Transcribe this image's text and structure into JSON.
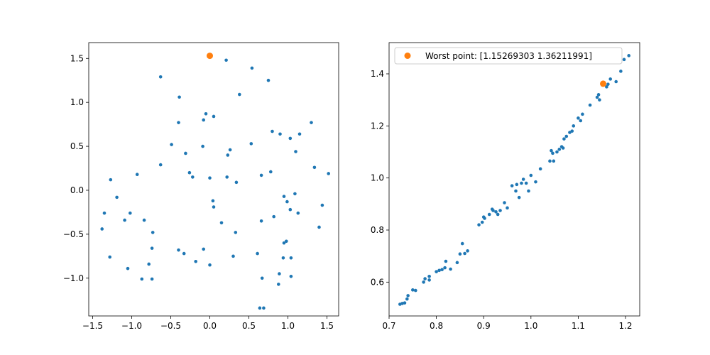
{
  "colors": {
    "points": "#1f77b4",
    "highlight": "#ff7f0e"
  },
  "chart_data": [
    {
      "type": "scatter",
      "title": "",
      "xlabel": "",
      "ylabel": "",
      "xlim": [
        -1.55,
        1.65
      ],
      "ylim": [
        -1.43,
        1.68
      ],
      "xticks": [
        -1.5,
        -1.0,
        -0.5,
        0.0,
        0.5,
        1.0,
        1.5
      ],
      "xtick_labels": [
        "−1.5",
        "−1.0",
        "−0.5",
        "0.0",
        "0.5",
        "1.0",
        "1.5"
      ],
      "yticks": [
        -1.0,
        -0.5,
        0.0,
        0.5,
        1.0,
        1.5
      ],
      "ytick_labels": [
        "−1.0",
        "−0.5",
        "0.0",
        "0.5",
        "1.0",
        "1.5"
      ],
      "grid": false,
      "series": [
        {
          "marker": "small-dot",
          "x": [
            -0.63,
            0.21,
            0.54,
            0.75,
            -0.39,
            0.38,
            -0.4,
            -0.05,
            -0.08,
            0.05,
            1.3,
            0.8,
            0.9,
            1.03,
            1.15,
            -0.49,
            -0.09,
            0.53,
            1.1,
            -0.31,
            0.26,
            0.23,
            -0.63,
            1.34,
            1.52,
            -0.26,
            -0.93,
            -1.27,
            -0.22,
            0.0,
            0.22,
            0.34,
            0.78,
            0.66,
            -1.19,
            0.04,
            0.95,
            1.09,
            0.99,
            0.05,
            -1.35,
            -1.02,
            1.44,
            1.03,
            -1.09,
            -0.84,
            0.82,
            1.13,
            0.15,
            0.66,
            -0.73,
            0.33,
            -1.38,
            1.4,
            0.98,
            0.95,
            -0.74,
            -0.4,
            -0.33,
            -0.08,
            0.61,
            -1.28,
            0.94,
            1.04,
            0.3,
            -0.18,
            -0.78,
            0.0,
            -1.05,
            0.89,
            -0.87,
            -0.74,
            0.67,
            1.04,
            0.88,
            0.64,
            0.69
          ],
          "y": [
            1.29,
            1.48,
            1.39,
            1.25,
            1.06,
            1.09,
            0.77,
            0.87,
            0.8,
            0.84,
            0.77,
            0.67,
            0.64,
            0.59,
            0.64,
            0.52,
            0.5,
            0.53,
            0.44,
            0.42,
            0.46,
            0.4,
            0.29,
            0.26,
            0.19,
            0.2,
            0.18,
            0.12,
            0.15,
            0.14,
            0.15,
            0.09,
            0.21,
            0.17,
            -0.08,
            -0.12,
            -0.07,
            -0.04,
            -0.13,
            -0.19,
            -0.26,
            -0.26,
            -0.17,
            -0.22,
            -0.34,
            -0.34,
            -0.3,
            -0.26,
            -0.37,
            -0.35,
            -0.48,
            -0.48,
            -0.44,
            -0.42,
            -0.58,
            -0.6,
            -0.66,
            -0.68,
            -0.72,
            -0.67,
            -0.72,
            -0.76,
            -0.77,
            -0.77,
            -0.75,
            -0.81,
            -0.84,
            -0.85,
            -0.89,
            -0.95,
            -1.01,
            -1.01,
            -1.0,
            -0.98,
            -1.07,
            -1.34,
            -1.34
          ]
        },
        {
          "marker": "large-dot",
          "x": [
            0.0
          ],
          "y": [
            1.53
          ]
        }
      ]
    },
    {
      "type": "scatter",
      "title": "",
      "xlabel": "",
      "ylabel": "",
      "xlim": [
        0.7,
        1.23
      ],
      "ylim": [
        0.47,
        1.52
      ],
      "xticks": [
        0.7,
        0.8,
        0.9,
        1.0,
        1.1,
        1.2
      ],
      "xtick_labels": [
        "0.7",
        "0.8",
        "0.9",
        "1.0",
        "1.1",
        "1.2"
      ],
      "yticks": [
        0.6,
        0.8,
        1.0,
        1.2,
        1.4
      ],
      "ytick_labels": [
        "0.6",
        "0.8",
        "1.0",
        "1.2",
        "1.4"
      ],
      "grid": false,
      "legend": {
        "placement": "upper-left",
        "entries": [
          "Worst point: [1.15269303 1.36211991]"
        ]
      },
      "series": [
        {
          "marker": "small-dot",
          "x": [
            0.723,
            0.728,
            0.733,
            0.738,
            0.74,
            0.75,
            0.756,
            0.773,
            0.776,
            0.785,
            0.785,
            0.8,
            0.806,
            0.812,
            0.818,
            0.82,
            0.83,
            0.844,
            0.85,
            0.855,
            0.86,
            0.866,
            0.89,
            0.897,
            0.9,
            0.902,
            0.912,
            0.918,
            0.92,
            0.926,
            0.93,
            0.935,
            0.944,
            0.95,
            0.96,
            0.968,
            0.97,
            0.975,
            0.98,
            0.984,
            0.99,
            0.995,
            1.0,
            1.01,
            1.02,
            1.04,
            1.043,
            1.046,
            1.048,
            1.055,
            1.06,
            1.065,
            1.068,
            1.07,
            1.075,
            1.082,
            1.087,
            1.09,
            1.1,
            1.105,
            1.109,
            1.125,
            1.14,
            1.143,
            1.145,
            1.16,
            1.163,
            1.168,
            1.18,
            1.19,
            1.197,
            1.207
          ],
          "y": [
            0.515,
            0.518,
            0.52,
            0.535,
            0.548,
            0.57,
            0.568,
            0.6,
            0.613,
            0.608,
            0.622,
            0.64,
            0.645,
            0.648,
            0.655,
            0.68,
            0.65,
            0.675,
            0.708,
            0.748,
            0.71,
            0.72,
            0.82,
            0.83,
            0.85,
            0.845,
            0.86,
            0.88,
            0.875,
            0.87,
            0.86,
            0.875,
            0.905,
            0.885,
            0.97,
            0.95,
            0.975,
            0.925,
            0.98,
            0.995,
            0.98,
            0.95,
            1.01,
            0.985,
            1.035,
            1.065,
            1.105,
            1.095,
            1.065,
            1.1,
            1.11,
            1.12,
            1.115,
            1.15,
            1.16,
            1.175,
            1.18,
            1.2,
            1.23,
            1.22,
            1.245,
            1.28,
            1.31,
            1.32,
            1.3,
            1.35,
            1.36,
            1.38,
            1.37,
            1.41,
            1.455,
            1.47
          ]
        },
        {
          "marker": "large-dot",
          "name": "Worst point: [1.15269303 1.36211991]",
          "x": [
            1.15269303
          ],
          "y": [
            1.36211991
          ]
        }
      ]
    }
  ]
}
